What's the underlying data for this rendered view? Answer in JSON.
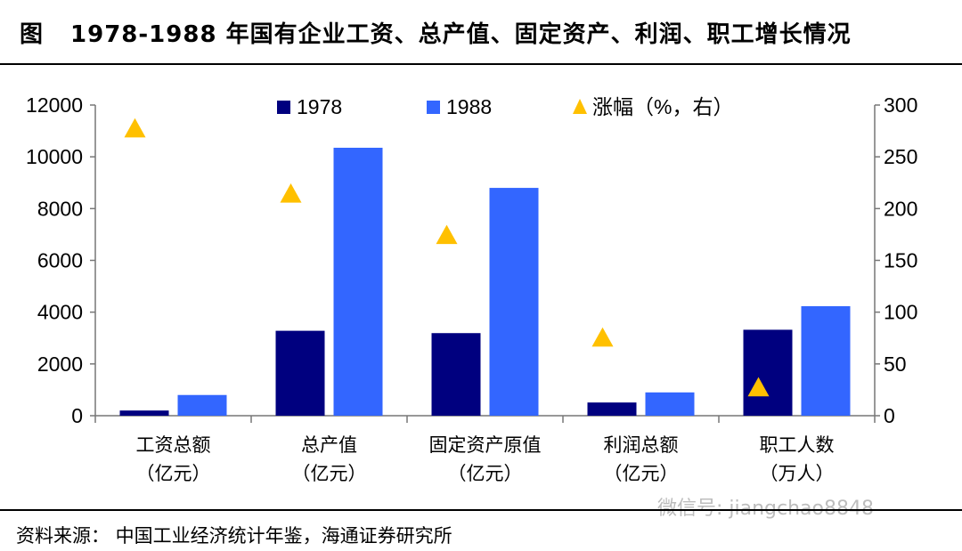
{
  "header": {
    "figure_label": "图",
    "title": "1978-1988 年国有企业工资、总产值、固定资产、利润、职工增长情况"
  },
  "footer": {
    "source": "资料来源：  中国工业经济统计年鉴，海通证券研究所",
    "watermark": "微信号: jiangchao8848"
  },
  "chart_data": {
    "type": "bar",
    "categories": [
      [
        "工资总额",
        "（亿元）"
      ],
      [
        "总产值",
        "（亿元）"
      ],
      [
        "固定资产原值",
        "（亿元）"
      ],
      [
        "利润总额",
        "（亿元）"
      ],
      [
        "职工人数",
        "（万人）"
      ]
    ],
    "series": [
      {
        "name": "1978",
        "type": "bar",
        "axis": "left",
        "color": "#00007F",
        "values": [
          200,
          3280,
          3190,
          510,
          3320
        ]
      },
      {
        "name": "1988",
        "type": "bar",
        "axis": "left",
        "color": "#3366FF",
        "values": [
          800,
          10350,
          8800,
          900,
          4230
        ]
      },
      {
        "name": "涨幅（%，右）",
        "type": "scatter",
        "marker": "triangle",
        "axis": "right",
        "color": "#FFC000",
        "values": [
          277,
          214,
          174,
          75,
          27
        ]
      }
    ],
    "left_axis": {
      "min": 0,
      "max": 12000,
      "ticks": [
        0,
        2000,
        4000,
        6000,
        8000,
        10000,
        12000
      ]
    },
    "right_axis": {
      "min": 0,
      "max": 300,
      "ticks": [
        0,
        50,
        100,
        150,
        200,
        250,
        300
      ]
    },
    "legend_position": "top",
    "grid": false
  }
}
